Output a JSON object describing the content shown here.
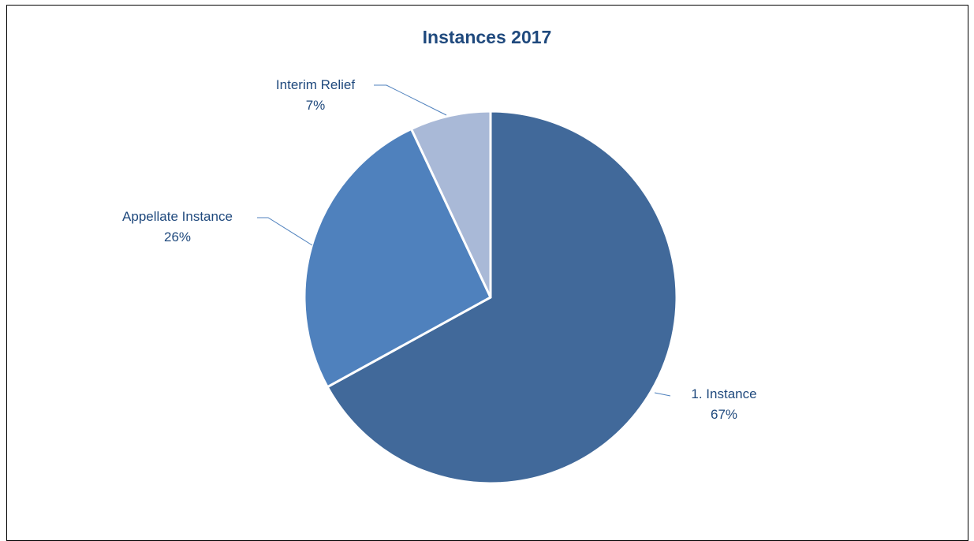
{
  "chart_data": {
    "type": "pie",
    "title": "Instances 2017",
    "slices": [
      {
        "label": "1. Instance",
        "percent_label": "67%",
        "value": 67,
        "color": "#41699a"
      },
      {
        "label": "Appellate Instance",
        "percent_label": "26%",
        "value": 26,
        "color": "#4f81bd"
      },
      {
        "label": "Interim Relief",
        "percent_label": "7%",
        "value": 7,
        "color": "#a9b9d7"
      }
    ],
    "legend": "none",
    "data_labels": "outside with leader lines"
  }
}
